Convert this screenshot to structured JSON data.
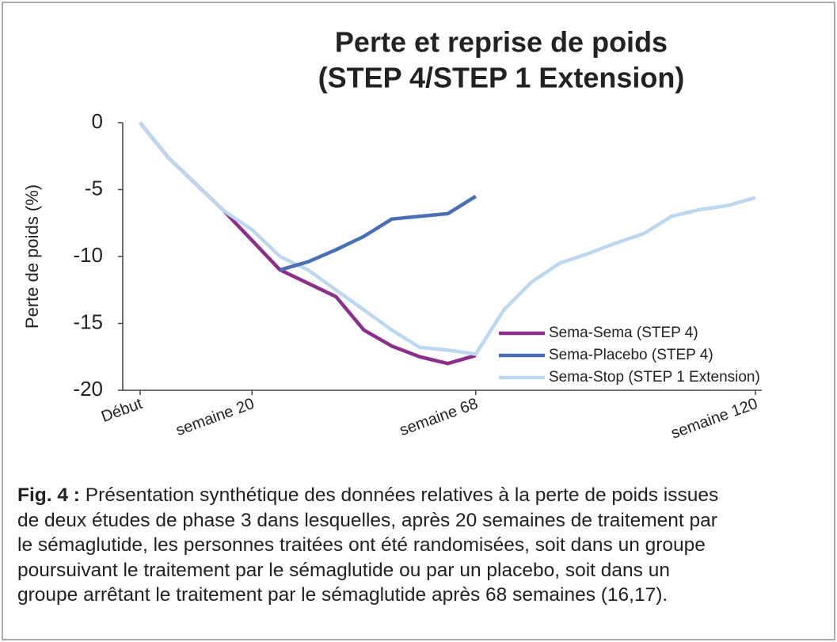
{
  "chart_data": {
    "type": "line",
    "title": [
      "Perte et reprise de poids",
      "(STEP 4/STEP 1 Extension)"
    ],
    "y_label": "Perte de poids (%)",
    "categories": [
      "Début",
      null,
      null,
      null,
      "semaine 20",
      null,
      null,
      null,
      null,
      null,
      null,
      null,
      "semaine 68",
      null,
      null,
      null,
      null,
      null,
      null,
      null,
      null,
      null,
      "semaine 120"
    ],
    "series": [
      {
        "name": "Sema-Sema (STEP 4)",
        "color": "#8b2f8b",
        "values": [
          0,
          -2.6,
          -4.6,
          -6.6,
          -8.8,
          -11,
          -12,
          -13,
          -15.5,
          -16.7,
          -17.5,
          -18,
          -17.4,
          null,
          null,
          null,
          null,
          null,
          null,
          null,
          null,
          null,
          null
        ]
      },
      {
        "name": "Sema-Placebo (STEP 4)",
        "color": "#4a6fb5",
        "values": [
          null,
          null,
          null,
          null,
          null,
          -11,
          -10.4,
          -9.5,
          -8.5,
          -7.2,
          -7,
          -6.8,
          -5.5,
          null,
          null,
          null,
          null,
          null,
          null,
          null,
          null,
          null,
          null
        ]
      },
      {
        "name": "Sema-Stop (STEP 1 Extension)",
        "color": "#bcd7ef",
        "values": [
          0,
          -2.6,
          -4.6,
          -6.6,
          -8,
          -10,
          -11,
          -12.5,
          -14,
          -15.5,
          -16.8,
          -17,
          -17.3,
          -14,
          -11.9,
          -10.5,
          -9.8,
          -9,
          -8.3,
          -7,
          -6.5,
          -6.2,
          -5.6
        ]
      }
    ],
    "ylim": [
      -20,
      0
    ],
    "yticks": [
      0,
      -5,
      -10,
      -15,
      -20
    ],
    "grid": false,
    "legend": "right"
  },
  "caption": {
    "label": "Fig. 4 :",
    "lines": [
      "Présentation synthétique des données relatives à la perte de poids issues",
      "de deux études de phase 3 dans lesquelles, après 20 semaines de traitement par",
      "le sémaglutide, les personnes traitées ont été randomisées, soit dans un groupe",
      "poursuivant le traitement par le sémaglutide ou par un placebo, soit dans un",
      "groupe arrêtant le traitement par le sémaglutide après 68 semaines (16,17)."
    ]
  }
}
